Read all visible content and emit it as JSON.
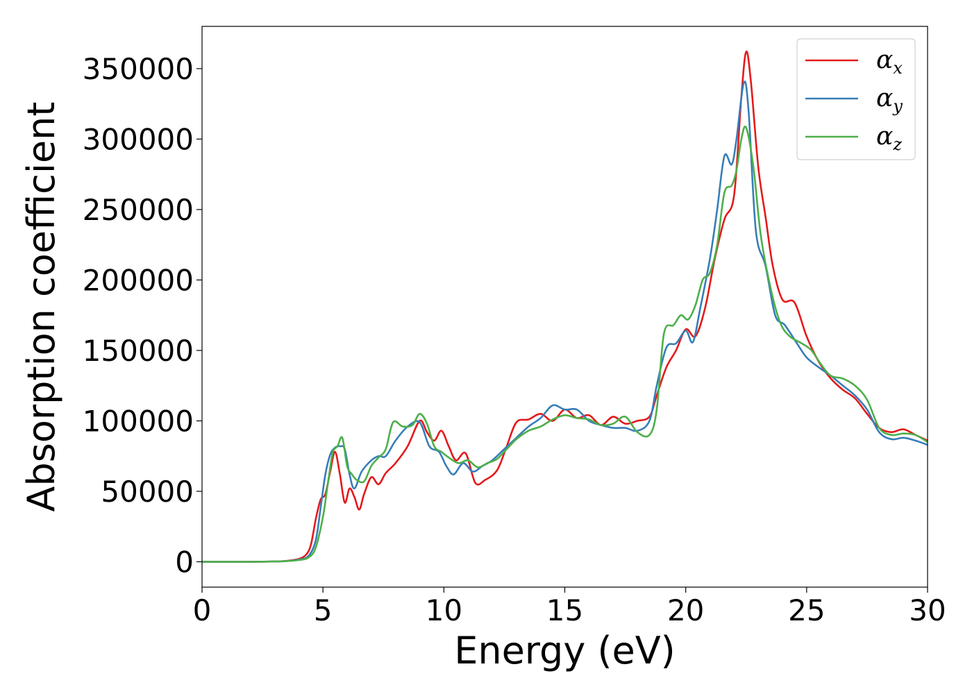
{
  "chart_data": {
    "type": "line",
    "title": "",
    "xlabel": "Energy (eV)",
    "ylabel": "Absorption coefficient",
    "xlim": [
      0,
      30
    ],
    "ylim": [
      -18000,
      380000
    ],
    "xticks": [
      0,
      5,
      10,
      15,
      20,
      25,
      30
    ],
    "yticks": [
      0,
      50000,
      100000,
      150000,
      200000,
      250000,
      300000,
      350000
    ],
    "grid": false,
    "legend_position": "top-right",
    "series": [
      {
        "name": "αx",
        "symbol": "α",
        "subscript": "x",
        "color": "#e41a1c",
        "x": [
          0,
          1,
          2,
          3,
          3.5,
          4,
          4.3,
          4.5,
          4.7,
          4.9,
          5.1,
          5.3,
          5.5,
          5.7,
          5.9,
          6.1,
          6.3,
          6.5,
          6.7,
          7.0,
          7.3,
          7.6,
          8.0,
          8.5,
          9.0,
          9.3,
          9.6,
          9.9,
          10.2,
          10.5,
          10.9,
          11.3,
          11.7,
          12.2,
          12.6,
          13.0,
          13.5,
          14.0,
          14.5,
          15.0,
          15.5,
          16.0,
          16.5,
          17.0,
          17.5,
          18.0,
          18.5,
          18.8,
          19.2,
          19.6,
          20.0,
          20.4,
          20.8,
          21.2,
          21.6,
          22.0,
          22.3,
          22.5,
          22.7,
          23.0,
          23.3,
          23.6,
          24.0,
          24.5,
          25.0,
          25.5,
          26.0,
          26.5,
          27.0,
          27.5,
          28.0,
          28.5,
          29.0,
          29.5,
          30.0
        ],
        "values": [
          0,
          0,
          0,
          200,
          600,
          2000,
          5000,
          12000,
          30000,
          44000,
          48000,
          64000,
          78000,
          62000,
          42000,
          52000,
          46000,
          37000,
          48000,
          60000,
          55000,
          63000,
          70000,
          82000,
          100000,
          92000,
          86000,
          93000,
          82000,
          72000,
          77000,
          56000,
          58000,
          65000,
          82000,
          99000,
          101000,
          105000,
          100000,
          108000,
          102000,
          104000,
          97000,
          103000,
          98000,
          100000,
          103000,
          118000,
          138000,
          150000,
          165000,
          160000,
          180000,
          215000,
          243000,
          260000,
          330000,
          362000,
          340000,
          280000,
          245000,
          210000,
          186000,
          184000,
          160000,
          142000,
          130000,
          122000,
          116000,
          105000,
          95000,
          92000,
          94000,
          90000,
          86000
        ]
      },
      {
        "name": "αy",
        "symbol": "α",
        "subscript": "y",
        "color": "#377eb8",
        "x": [
          0,
          1,
          2,
          3,
          3.5,
          4,
          4.4,
          4.7,
          4.9,
          5.1,
          5.3,
          5.5,
          5.7,
          5.9,
          6.1,
          6.3,
          6.6,
          7.0,
          7.3,
          7.6,
          8.0,
          8.5,
          9.0,
          9.4,
          9.8,
          10.1,
          10.4,
          10.8,
          11.2,
          11.6,
          12.0,
          12.5,
          13.0,
          13.5,
          14.0,
          14.5,
          15.0,
          15.5,
          16.0,
          16.5,
          17.0,
          17.5,
          18.0,
          18.5,
          18.8,
          19.2,
          19.6,
          20.0,
          20.3,
          20.6,
          21.0,
          21.3,
          21.6,
          21.9,
          22.1,
          22.4,
          22.6,
          22.9,
          23.3,
          23.7,
          24.1,
          24.6,
          25.0,
          25.5,
          26.0,
          26.5,
          27.0,
          27.5,
          28.0,
          28.5,
          29.0,
          29.5,
          30.0
        ],
        "values": [
          0,
          0,
          0,
          200,
          500,
          1500,
          4000,
          15000,
          38000,
          62000,
          76000,
          81000,
          82000,
          80000,
          62000,
          52000,
          64000,
          72000,
          75000,
          75000,
          86000,
          96000,
          99000,
          82000,
          78000,
          68000,
          62000,
          70000,
          64000,
          68000,
          72000,
          80000,
          88000,
          96000,
          102000,
          111000,
          108000,
          108000,
          100000,
          97000,
          95000,
          95000,
          93000,
          100000,
          125000,
          152000,
          155000,
          164000,
          156000,
          180000,
          215000,
          250000,
          288000,
          282000,
          300000,
          340000,
          320000,
          235000,
          210000,
          175000,
          168000,
          155000,
          145000,
          138000,
          132000,
          125000,
          118000,
          108000,
          92000,
          87000,
          88000,
          86000,
          83000
        ]
      },
      {
        "name": "αz",
        "symbol": "α",
        "subscript": "z",
        "color": "#4daf4a",
        "x": [
          0,
          1,
          2,
          3,
          3.5,
          4,
          4.4,
          4.7,
          5.0,
          5.2,
          5.4,
          5.6,
          5.8,
          6.0,
          6.2,
          6.4,
          6.7,
          7.0,
          7.3,
          7.6,
          7.9,
          8.3,
          8.7,
          9.0,
          9.3,
          9.6,
          9.9,
          10.2,
          10.6,
          11.0,
          11.4,
          11.8,
          12.2,
          12.6,
          13.0,
          13.5,
          14.0,
          14.5,
          15.0,
          15.5,
          16.0,
          16.5,
          17.0,
          17.5,
          18.0,
          18.5,
          18.8,
          19.1,
          19.5,
          19.8,
          20.1,
          20.4,
          20.7,
          21.0,
          21.3,
          21.6,
          21.9,
          22.1,
          22.3,
          22.5,
          22.8,
          23.1,
          23.5,
          23.9,
          24.3,
          24.8,
          25.2,
          25.6,
          26.0,
          26.5,
          27.0,
          27.5,
          28.0,
          28.5,
          29.0,
          29.5,
          30.0
        ],
        "values": [
          0,
          0,
          0,
          200,
          500,
          1200,
          3000,
          10000,
          32000,
          55000,
          77000,
          82000,
          88000,
          68000,
          62000,
          58000,
          57000,
          68000,
          74000,
          80000,
          99000,
          96000,
          97000,
          105000,
          98000,
          82000,
          78000,
          74000,
          70000,
          72000,
          67000,
          70000,
          73000,
          80000,
          87000,
          93000,
          96000,
          101000,
          104000,
          102000,
          101000,
          97000,
          98000,
          103000,
          92000,
          90000,
          108000,
          162000,
          168000,
          175000,
          172000,
          182000,
          200000,
          205000,
          225000,
          262000,
          267000,
          278000,
          300000,
          308000,
          280000,
          232000,
          195000,
          170000,
          160000,
          155000,
          150000,
          140000,
          132000,
          130000,
          125000,
          115000,
          95000,
          90000,
          91000,
          90000,
          85000
        ]
      }
    ]
  }
}
